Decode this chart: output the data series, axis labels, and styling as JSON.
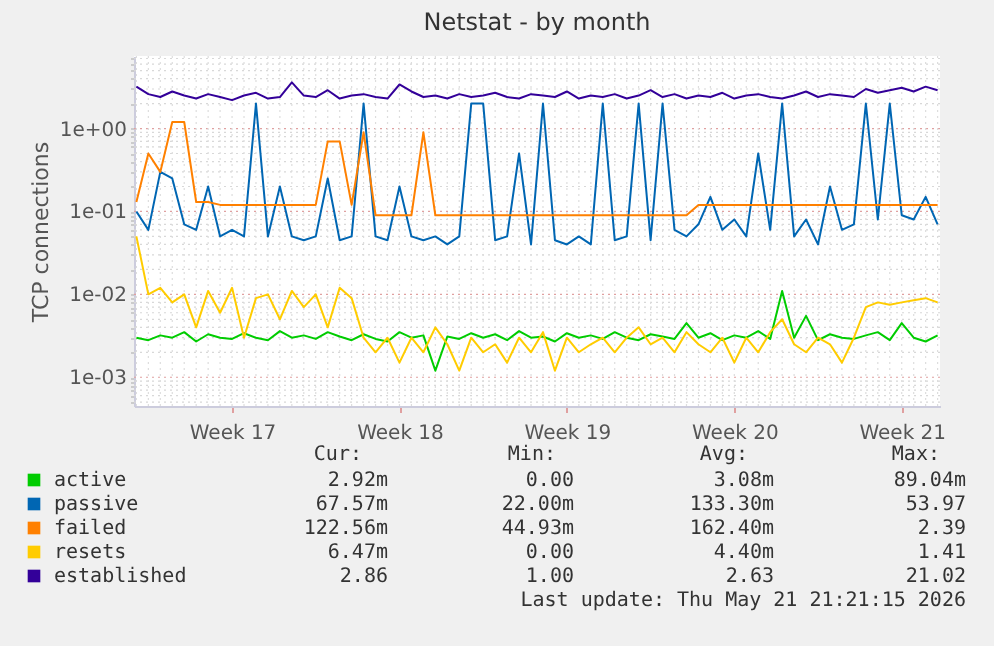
{
  "chart_data": {
    "type": "line",
    "title": "Netstat - by month",
    "ylabel": "TCP connections",
    "log": true,
    "grid": true,
    "legend": "bottom",
    "line_style": "solid",
    "marker": "none",
    "categories": [
      null,
      null,
      null,
      null,
      null,
      null,
      null,
      null,
      "Week 17",
      null,
      null,
      null,
      null,
      null,
      null,
      null,
      null,
      null,
      null,
      null,
      null,
      null,
      "Week 18",
      null,
      null,
      null,
      null,
      null,
      null,
      null,
      null,
      null,
      null,
      null,
      null,
      null,
      "Week 19",
      null,
      null,
      null,
      null,
      null,
      null,
      null,
      null,
      null,
      null,
      null,
      null,
      null,
      "Week 20",
      null,
      null,
      null,
      null,
      null,
      null,
      null,
      null,
      null,
      null,
      null,
      null,
      null,
      "Week 21",
      null,
      null,
      null
    ],
    "ylim": [
      0.00045,
      7.5
    ],
    "yticks": [
      {
        "value": 0.0005,
        "label": null
      },
      {
        "value": 0.0006,
        "label": null
      },
      {
        "value": 0.0007,
        "label": null
      },
      {
        "value": 0.0008,
        "label": null
      },
      {
        "value": 0.0009,
        "label": null
      },
      {
        "value": 0.001,
        "label": "1e-03"
      },
      {
        "value": 0.002,
        "label": null
      },
      {
        "value": 0.003,
        "label": null
      },
      {
        "value": 0.004,
        "label": null
      },
      {
        "value": 0.005,
        "label": null
      },
      {
        "value": 0.006,
        "label": null
      },
      {
        "value": 0.007,
        "label": null
      },
      {
        "value": 0.008,
        "label": null
      },
      {
        "value": 0.009,
        "label": null
      },
      {
        "value": 0.01,
        "label": "1e-02"
      },
      {
        "value": 0.02,
        "label": null
      },
      {
        "value": 0.03,
        "label": null
      },
      {
        "value": 0.04,
        "label": null
      },
      {
        "value": 0.05,
        "label": null
      },
      {
        "value": 0.06,
        "label": null
      },
      {
        "value": 0.07,
        "label": null
      },
      {
        "value": 0.08,
        "label": null
      },
      {
        "value": 0.09,
        "label": null
      },
      {
        "value": 0.1,
        "label": "1e-01"
      },
      {
        "value": 0.2,
        "label": null
      },
      {
        "value": 0.3,
        "label": null
      },
      {
        "value": 0.4,
        "label": null
      },
      {
        "value": 0.5,
        "label": null
      },
      {
        "value": 0.6,
        "label": null
      },
      {
        "value": 0.7,
        "label": null
      },
      {
        "value": 0.8,
        "label": null
      },
      {
        "value": 0.9,
        "label": null
      },
      {
        "value": 1,
        "label": "1e+00"
      },
      {
        "value": 2,
        "label": null
      },
      {
        "value": 3,
        "label": null
      },
      {
        "value": 4,
        "label": null
      },
      {
        "value": 5,
        "label": null
      },
      {
        "value": 6,
        "label": null
      },
      {
        "value": 7,
        "label": null
      }
    ],
    "series": [
      {
        "name": "active",
        "color": "#00cc00",
        "values": [
          0.003,
          0.0028,
          0.0032,
          0.003,
          0.0035,
          0.0027,
          0.0033,
          0.003,
          0.0029,
          0.0034,
          0.003,
          0.0028,
          0.0036,
          0.003,
          0.0032,
          0.0029,
          0.0035,
          0.0031,
          0.0028,
          0.0033,
          0.0029,
          0.0027,
          0.0035,
          0.003,
          0.0032,
          0.0012,
          0.0031,
          0.0029,
          0.0034,
          0.003,
          0.0033,
          0.0028,
          0.0036,
          0.003,
          0.0031,
          0.0027,
          0.0034,
          0.003,
          0.0032,
          0.0029,
          0.0035,
          0.003,
          0.0028,
          0.0033,
          0.0031,
          0.0029,
          0.0045,
          0.003,
          0.0034,
          0.0028,
          0.0032,
          0.003,
          0.0036,
          0.0029,
          0.011,
          0.003,
          0.0055,
          0.0028,
          0.0033,
          0.003,
          0.0029,
          0.0032,
          0.0035,
          0.0028,
          0.0045,
          0.003,
          0.0027,
          0.0032
        ]
      },
      {
        "name": "passive",
        "color": "#0066b3",
        "values": [
          0.1,
          0.06,
          0.3,
          0.25,
          0.07,
          0.06,
          0.2,
          0.05,
          0.06,
          0.05,
          2.0,
          0.05,
          0.2,
          0.05,
          0.045,
          0.05,
          0.25,
          0.045,
          0.05,
          2.0,
          0.05,
          0.045,
          0.2,
          0.05,
          0.045,
          0.05,
          0.04,
          0.05,
          2.0,
          2.0,
          0.045,
          0.05,
          0.5,
          0.04,
          2.0,
          0.045,
          0.04,
          0.05,
          0.04,
          2.0,
          0.045,
          0.05,
          2.0,
          0.045,
          2.0,
          0.06,
          0.05,
          0.07,
          0.15,
          0.06,
          0.08,
          0.05,
          0.5,
          0.06,
          2.0,
          0.05,
          0.08,
          0.04,
          0.2,
          0.06,
          0.07,
          2.0,
          0.08,
          2.0,
          0.09,
          0.08,
          0.15,
          0.07
        ]
      },
      {
        "name": "failed",
        "color": "#ff8000",
        "values": [
          0.13,
          0.5,
          0.3,
          1.2,
          1.2,
          0.13,
          0.13,
          0.12,
          0.12,
          0.12,
          0.12,
          0.12,
          0.12,
          0.12,
          0.12,
          0.12,
          0.7,
          0.7,
          0.12,
          0.9,
          0.09,
          0.09,
          0.09,
          0.09,
          0.9,
          0.09,
          0.09,
          0.09,
          0.09,
          0.09,
          0.09,
          0.09,
          0.09,
          0.09,
          0.09,
          0.09,
          0.09,
          0.09,
          0.09,
          0.09,
          0.09,
          0.09,
          0.09,
          0.09,
          0.09,
          0.09,
          0.09,
          0.12,
          0.12,
          0.12,
          0.12,
          0.12,
          0.12,
          0.12,
          0.12,
          0.12,
          0.12,
          0.12,
          0.12,
          0.12,
          0.12,
          0.12,
          0.12,
          0.12,
          0.12,
          0.12,
          0.12,
          0.12
        ]
      },
      {
        "name": "resets",
        "color": "#ffcc00",
        "values": [
          0.05,
          0.01,
          0.012,
          0.008,
          0.01,
          0.004,
          0.011,
          0.006,
          0.012,
          0.003,
          0.009,
          0.01,
          0.005,
          0.011,
          0.007,
          0.01,
          0.004,
          0.012,
          0.009,
          0.003,
          0.002,
          0.003,
          0.0015,
          0.003,
          0.002,
          0.004,
          0.0025,
          0.0012,
          0.003,
          0.002,
          0.0025,
          0.0015,
          0.003,
          0.002,
          0.0035,
          0.0012,
          0.003,
          0.002,
          0.0025,
          0.003,
          0.002,
          0.003,
          0.004,
          0.0025,
          0.003,
          0.002,
          0.0035,
          0.0025,
          0.002,
          0.003,
          0.0015,
          0.003,
          0.002,
          0.0035,
          0.005,
          0.0025,
          0.002,
          0.003,
          0.0025,
          0.0015,
          0.003,
          0.007,
          0.008,
          0.0075,
          0.008,
          0.0085,
          0.009,
          0.008
        ]
      },
      {
        "name": "established",
        "color": "#330099",
        "values": [
          3.2,
          2.6,
          2.4,
          2.8,
          2.5,
          2.3,
          2.6,
          2.4,
          2.2,
          2.5,
          2.7,
          2.3,
          2.4,
          3.6,
          2.5,
          2.4,
          2.9,
          2.3,
          2.5,
          2.6,
          2.4,
          2.3,
          3.4,
          2.8,
          2.4,
          2.5,
          2.3,
          2.6,
          2.4,
          2.5,
          2.7,
          2.4,
          2.3,
          2.6,
          2.5,
          2.4,
          2.8,
          2.3,
          2.5,
          2.4,
          2.6,
          2.3,
          2.5,
          2.9,
          2.4,
          2.6,
          2.3,
          2.5,
          2.4,
          2.7,
          2.3,
          2.5,
          2.6,
          2.4,
          2.3,
          2.5,
          2.8,
          2.4,
          2.6,
          2.5,
          2.4,
          3.0,
          2.7,
          2.9,
          3.1,
          2.8,
          3.2,
          2.9
        ]
      }
    ],
    "annotations": [
      "Cur:",
      "Min:",
      "Avg:",
      "Max:",
      "2.92m",
      "0.00",
      "3.08m",
      "89.04m",
      "67.57m",
      "22.00m",
      "133.30m",
      "53.97",
      "122.56m",
      "44.93m",
      "162.40m",
      "2.39",
      "6.47m",
      "0.00",
      "4.40m",
      "1.41",
      "2.86",
      "1.00",
      "2.63",
      "21.02",
      "Last update: Thu May 21 21:21:15 2026"
    ]
  }
}
